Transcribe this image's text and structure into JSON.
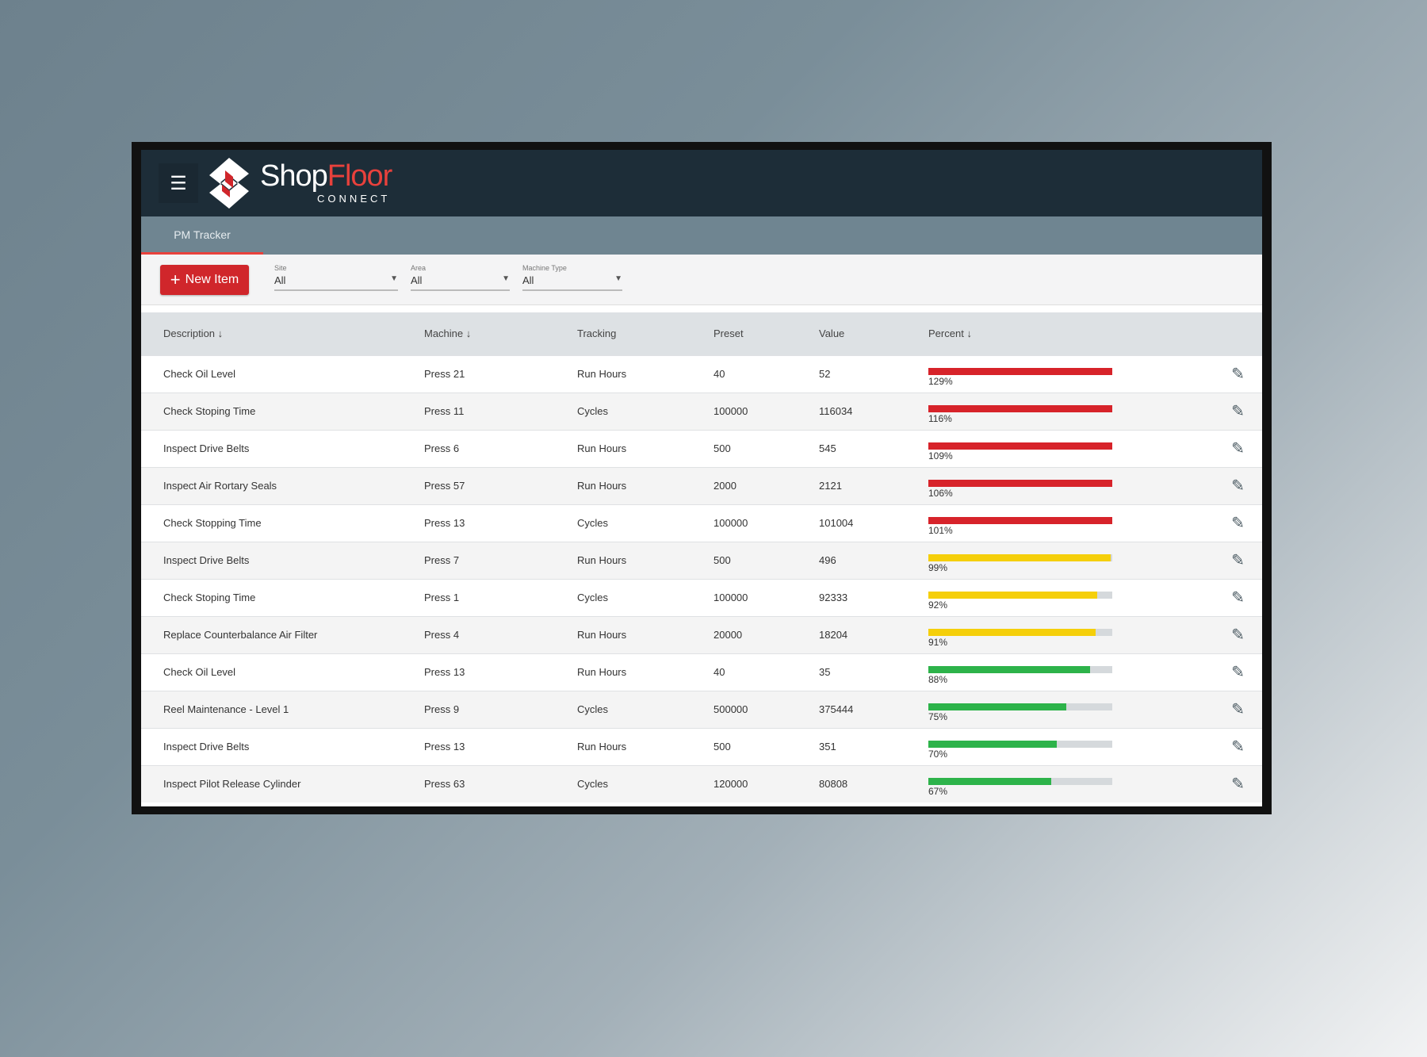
{
  "app": {
    "brand_part1": "Shop",
    "brand_part2": "Floor",
    "brand_sub": "CONNECT"
  },
  "tabs": [
    {
      "label": "PM Tracker",
      "active": true
    }
  ],
  "toolbar": {
    "new_item_label": "New Item",
    "filters": [
      {
        "label": "Site",
        "value": "All"
      },
      {
        "label": "Area",
        "value": "All"
      },
      {
        "label": "Machine Type",
        "value": "All"
      }
    ]
  },
  "table": {
    "headers": [
      "Description",
      "Machine",
      "Tracking",
      "Preset",
      "Value",
      "Percent"
    ],
    "rows": [
      {
        "description": "Check Oil Level",
        "machine": "Press 21",
        "tracking": "Run Hours",
        "preset": "40",
        "value": "52",
        "percent": 129,
        "percent_label": "129%",
        "status": "red"
      },
      {
        "description": "Check Stoping Time",
        "machine": "Press 11",
        "tracking": "Cycles",
        "preset": "100000",
        "value": "116034",
        "percent": 116,
        "percent_label": "116%",
        "status": "red"
      },
      {
        "description": "Inspect Drive Belts",
        "machine": "Press 6",
        "tracking": "Run Hours",
        "preset": "500",
        "value": "545",
        "percent": 109,
        "percent_label": "109%",
        "status": "red"
      },
      {
        "description": "Inspect Air Rortary Seals",
        "machine": "Press 57",
        "tracking": "Run Hours",
        "preset": "2000",
        "value": "2121",
        "percent": 106,
        "percent_label": "106%",
        "status": "red"
      },
      {
        "description": "Check Stopping Time",
        "machine": "Press 13",
        "tracking": "Cycles",
        "preset": "100000",
        "value": "101004",
        "percent": 101,
        "percent_label": "101%",
        "status": "red"
      },
      {
        "description": "Inspect Drive Belts",
        "machine": "Press 7",
        "tracking": "Run Hours",
        "preset": "500",
        "value": "496",
        "percent": 99,
        "percent_label": "99%",
        "status": "yellow"
      },
      {
        "description": "Check Stoping Time",
        "machine": "Press 1",
        "tracking": "Cycles",
        "preset": "100000",
        "value": "92333",
        "percent": 92,
        "percent_label": "92%",
        "status": "yellow"
      },
      {
        "description": "Replace Counterbalance Air Filter",
        "machine": "Press 4",
        "tracking": "Run Hours",
        "preset": "20000",
        "value": "18204",
        "percent": 91,
        "percent_label": "91%",
        "status": "yellow"
      },
      {
        "description": "Check Oil Level",
        "machine": "Press 13",
        "tracking": "Run Hours",
        "preset": "40",
        "value": "35",
        "percent": 88,
        "percent_label": "88%",
        "status": "green"
      },
      {
        "description": "Reel Maintenance - Level 1",
        "machine": "Press 9",
        "tracking": "Cycles",
        "preset": "500000",
        "value": "375444",
        "percent": 75,
        "percent_label": "75%",
        "status": "green"
      },
      {
        "description": "Inspect Drive Belts",
        "machine": "Press 13",
        "tracking": "Run Hours",
        "preset": "500",
        "value": "351",
        "percent": 70,
        "percent_label": "70%",
        "status": "green"
      },
      {
        "description": "Inspect Pilot Release Cylinder",
        "machine": "Press 63",
        "tracking": "Cycles",
        "preset": "120000",
        "value": "80808",
        "percent": 67,
        "percent_label": "67%",
        "status": "green"
      }
    ]
  },
  "colors": {
    "red": "#d7232a",
    "yellow": "#f5cf0a",
    "green": "#2db34a",
    "accent": "#e8413c"
  }
}
